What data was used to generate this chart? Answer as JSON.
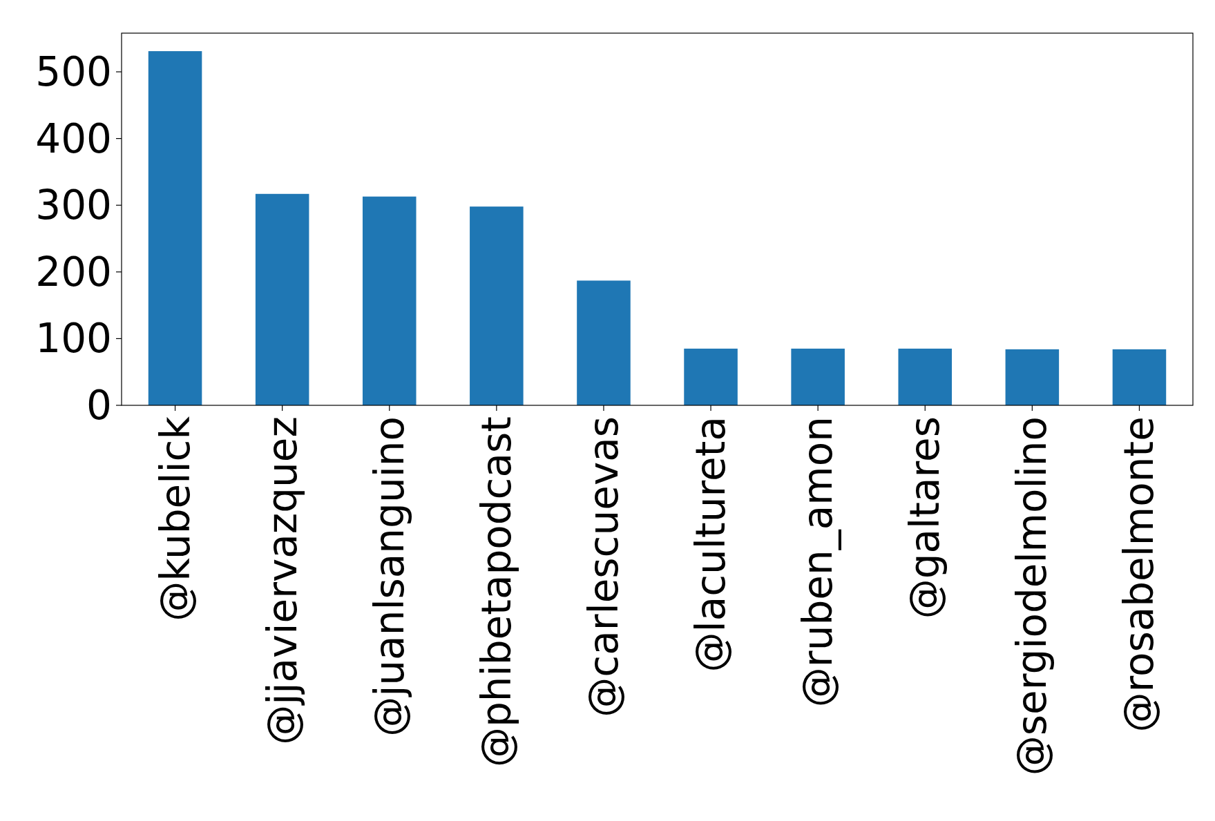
{
  "chart_data": {
    "type": "bar",
    "categories": [
      "@kubelick",
      "@jjaviervazquez",
      "@juanlsanguino",
      "@phibetapodcast",
      "@carlescuevas",
      "@lacultureta",
      "@ruben_amon",
      "@galtares",
      "@sergiodelmolino",
      "@rosabelmonte"
    ],
    "values": [
      531,
      317,
      313,
      298,
      187,
      85,
      85,
      85,
      84,
      84
    ],
    "color": "#1f77b4",
    "ylim": [
      0,
      558
    ],
    "yticks": [
      0,
      100,
      200,
      300,
      400,
      500
    ],
    "grid": false
  }
}
